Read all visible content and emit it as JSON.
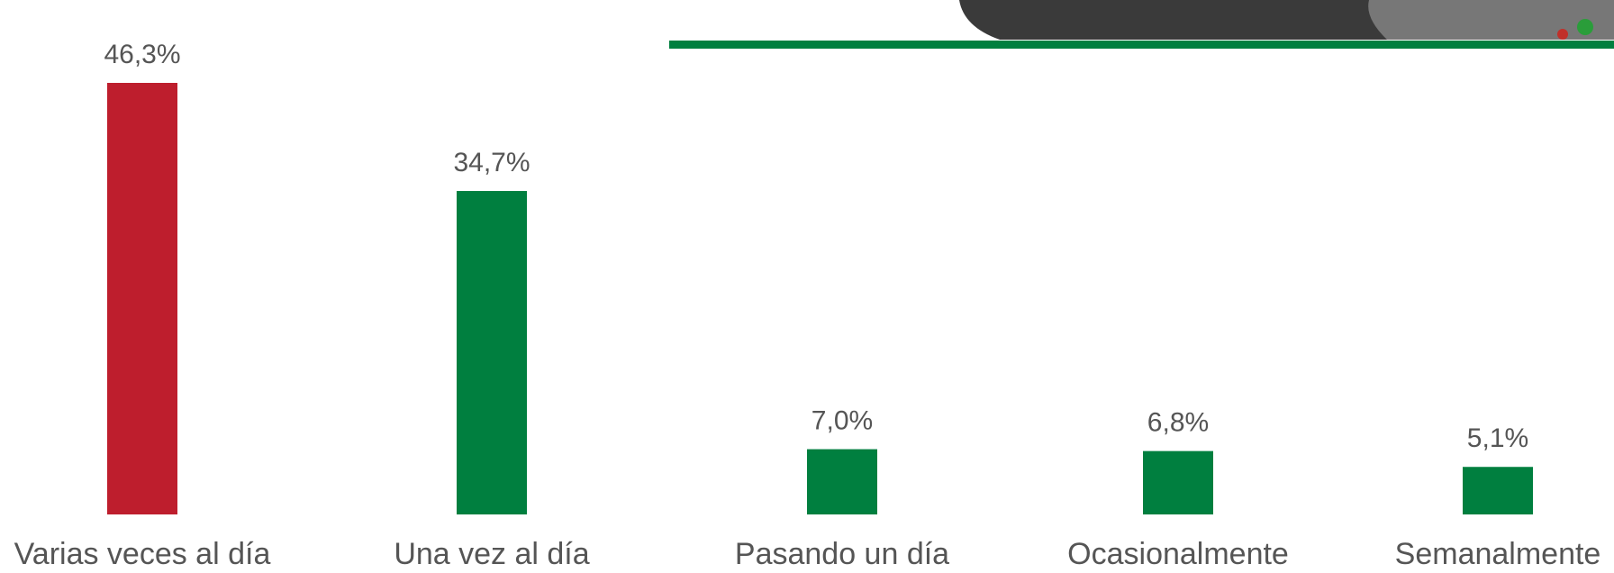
{
  "chart_data": {
    "type": "bar",
    "categories": [
      "Varias veces al día",
      "Una vez al día",
      "Pasando un día",
      "Ocasionalmente",
      "Semanalmente"
    ],
    "values": [
      46.3,
      34.7,
      7.0,
      6.8,
      5.1
    ],
    "value_labels": [
      "46,3%",
      "34,7%",
      "7,0%",
      "6,8%",
      "5,1%"
    ],
    "colors": [
      "#be1e2d",
      "#007f3f",
      "#007f3f",
      "#007f3f",
      "#007f3f"
    ],
    "ylim": [
      0,
      46.3
    ]
  }
}
